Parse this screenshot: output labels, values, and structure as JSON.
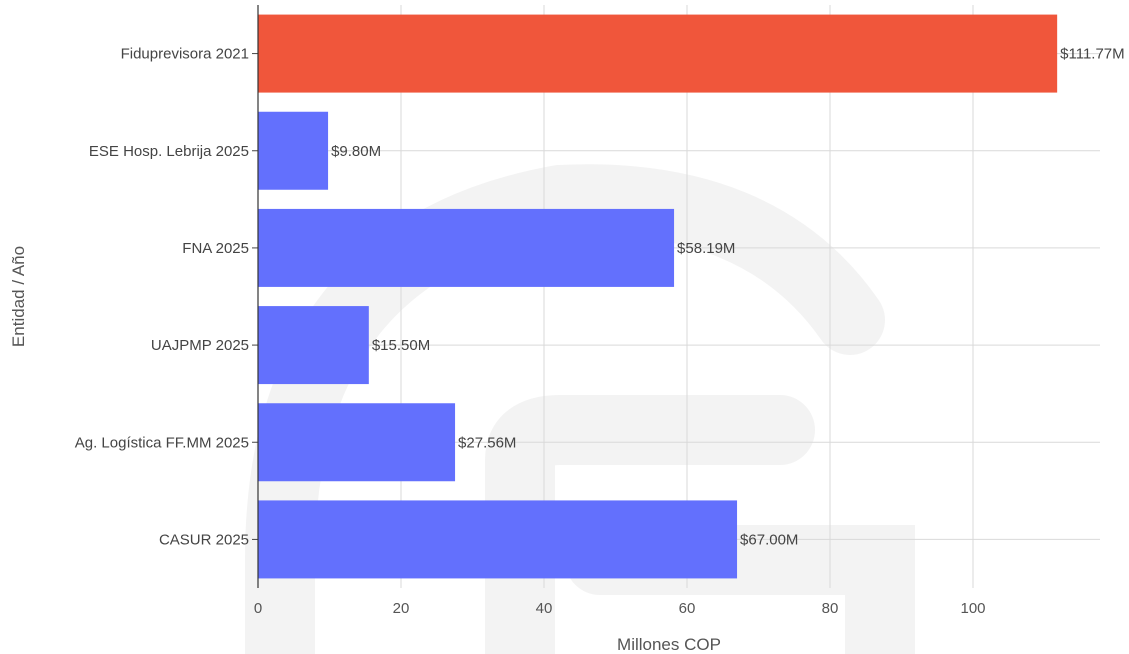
{
  "chart_data": {
    "type": "bar",
    "orientation": "horizontal",
    "categories": [
      "Fiduprevisora 2021",
      "ESE Hosp. Lebrija 2025",
      "FNA 2025",
      "UAJPMP 2025",
      "Ag. Logística FF.MM 2025",
      "CASUR 2025"
    ],
    "values": [
      111.77,
      9.8,
      58.19,
      15.5,
      27.56,
      67.0
    ],
    "data_labels": [
      "$111.77M",
      "$9.80M",
      "$58.19M",
      "$15.50M",
      "$27.56M",
      "$67.00M"
    ],
    "highlight_index": 0,
    "colors": {
      "highlight": "#f0563b",
      "default": "#6370fd"
    },
    "xlabel": "Millones COP",
    "ylabel": "Entidad / Año",
    "xlim": [
      0,
      118
    ],
    "xticks": [
      0,
      20,
      40,
      60,
      80,
      100
    ],
    "grid": true,
    "title": ""
  }
}
